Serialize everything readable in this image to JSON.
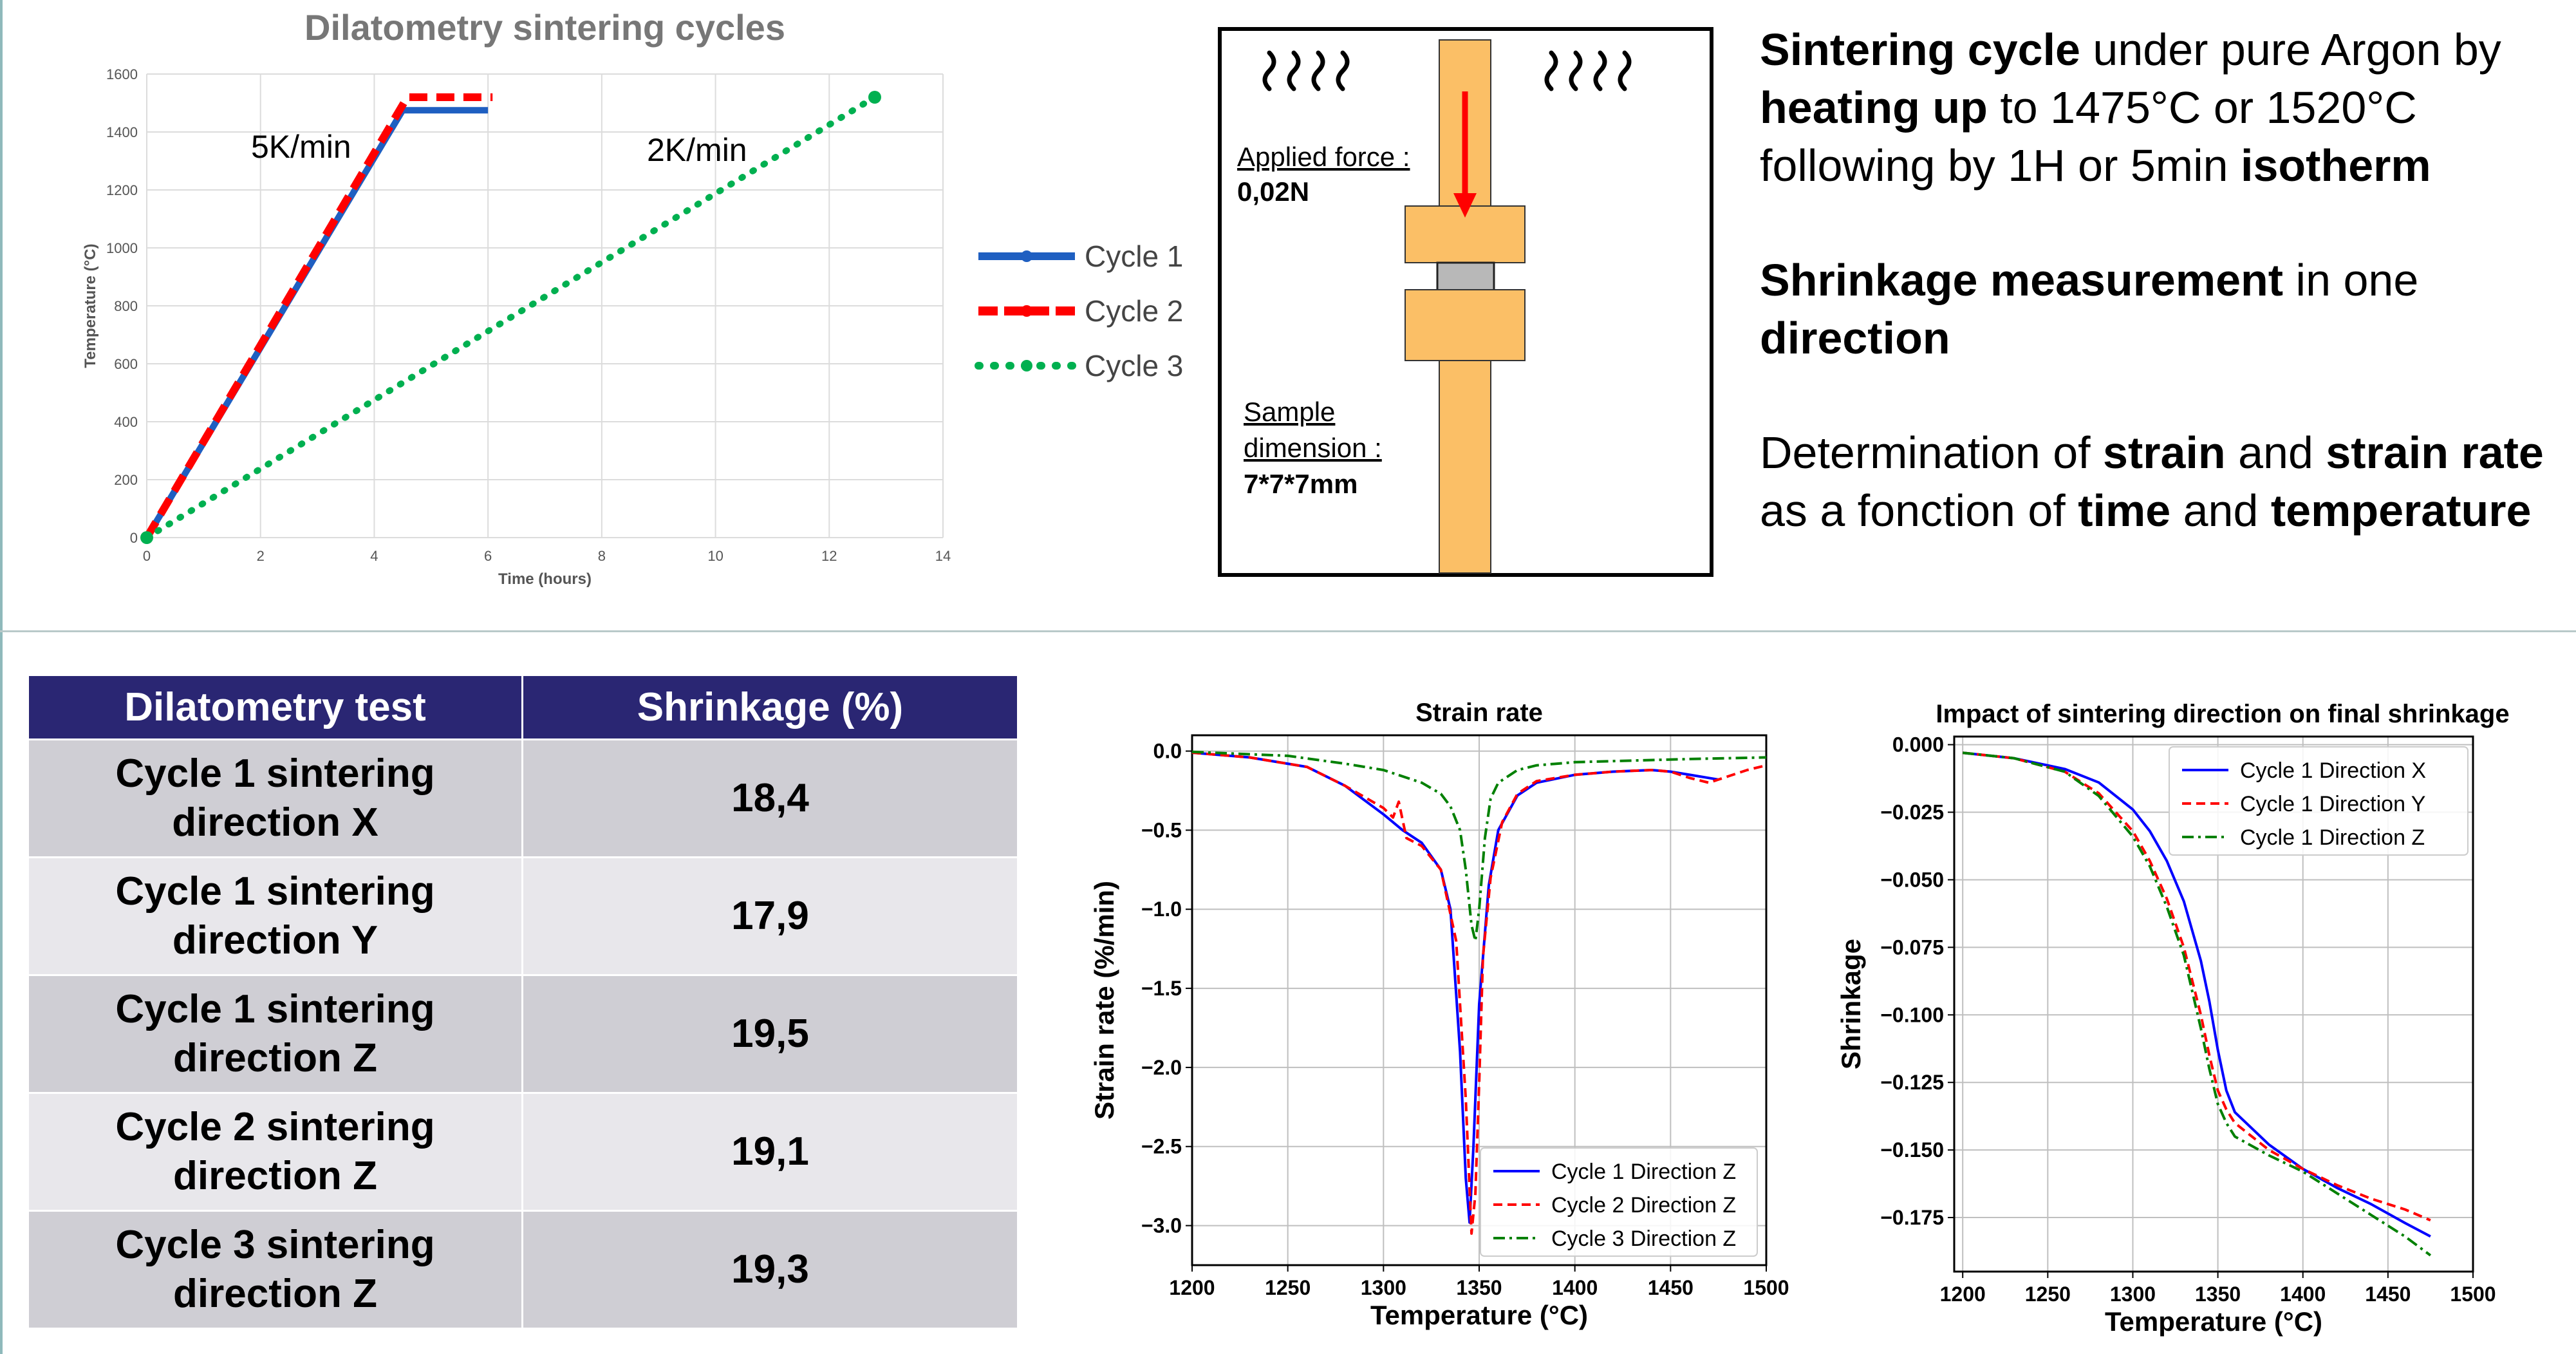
{
  "dilatometry_chart": {
    "title": "Dilatometry sintering cycles",
    "xlabel": "Time (hours)",
    "ylabel": "Temperature (°C)",
    "annotation_5k": "5K/min",
    "annotation_2k": "2K/min",
    "x_ticks": [
      "0",
      "2",
      "4",
      "6",
      "8",
      "10",
      "12",
      "14"
    ],
    "y_ticks": [
      "0",
      "200",
      "400",
      "600",
      "800",
      "1000",
      "1200",
      "1400",
      "1600"
    ],
    "legend": [
      "Cycle 1",
      "Cycle 2",
      "Cycle 3"
    ],
    "colors": {
      "cycle1": "#1f5fc1",
      "cycle2": "#ff0000",
      "cycle3": "#00b050"
    }
  },
  "schematic": {
    "applied_force_label": "Applied force :",
    "applied_force_value": "0,02N",
    "sample_label_1": "Sample",
    "sample_label_2": "dimension :",
    "sample_value": "7*7*7mm",
    "heat_icon_name": "heat-wave-icon",
    "force_arrow_icon_name": "down-arrow-icon"
  },
  "description": {
    "p1_a": "Sintering cycle",
    "p1_b": " under pure Argon by ",
    "p1_c": "heating up",
    "p1_d": " to 1475°C or 1520°C following by 1H or 5min ",
    "p1_e": "isotherm",
    "p2_a": "Shrinkage measurement",
    "p2_b": " in one ",
    "p2_c": "direction",
    "p3_a": "Determination of ",
    "p3_b": "strain",
    "p3_c": " and ",
    "p3_d": "strain rate",
    "p3_e": " as a fonction of ",
    "p3_f": "time",
    "p3_g": " and ",
    "p3_h": "temperature"
  },
  "table": {
    "headers": [
      "Dilatometry test",
      "Shrinkage (%)"
    ],
    "rows": [
      {
        "test_line1": "Cycle 1 sintering",
        "test_line2": "direction X",
        "value": "18,4"
      },
      {
        "test_line1": "Cycle 1 sintering",
        "test_line2": "direction Y",
        "value": "17,9"
      },
      {
        "test_line1": "Cycle 1 sintering",
        "test_line2": "direction Z",
        "value": "19,5"
      },
      {
        "test_line1": "Cycle 2 sintering",
        "test_line2": "direction Z",
        "value": "19,1"
      },
      {
        "test_line1": "Cycle 3 sintering",
        "test_line2": "direction Z",
        "value": "19,3"
      }
    ]
  },
  "chart_data": [
    {
      "type": "line",
      "title": "Dilatometry sintering cycles",
      "xlabel": "Time (hours)",
      "ylabel": "Temperature (°C)",
      "xlim": [
        0,
        14
      ],
      "ylim": [
        0,
        1600
      ],
      "grid": true,
      "legend_position": "right",
      "series": [
        {
          "name": "Cycle 1",
          "x": [
            0,
            4.5,
            6
          ],
          "y": [
            0,
            1475,
            1475
          ]
        },
        {
          "name": "Cycle 2",
          "x": [
            0,
            4.58,
            6.08
          ],
          "y": [
            0,
            1520,
            1520
          ]
        },
        {
          "name": "Cycle 3",
          "x": [
            0,
            12.8
          ],
          "y": [
            0,
            1520
          ]
        }
      ]
    },
    {
      "type": "line",
      "title": "Strain rate",
      "xlabel": "Temperature (°C)",
      "ylabel": "Strain rate (%/min)",
      "xlim": [
        1200,
        1500
      ],
      "ylim": [
        -3.25,
        0.1
      ],
      "x_ticks": [
        1200,
        1250,
        1300,
        1350,
        1400,
        1450,
        1500
      ],
      "y_ticks": [
        0.0,
        -0.5,
        -1.0,
        -1.5,
        -2.0,
        -2.5,
        -3.0
      ],
      "grid": true,
      "legend_position": "bottom-right",
      "series": [
        {
          "name": "Cycle 1 Direction Z",
          "x": [
            1200,
            1230,
            1260,
            1280,
            1300,
            1310,
            1320,
            1330,
            1335,
            1340,
            1343,
            1345,
            1347,
            1350,
            1355,
            1360,
            1370,
            1380,
            1400,
            1420,
            1440,
            1450,
            1460,
            1470,
            1475
          ],
          "y": [
            -0.01,
            -0.04,
            -0.1,
            -0.22,
            -0.4,
            -0.5,
            -0.58,
            -0.75,
            -1.0,
            -1.9,
            -2.7,
            -2.98,
            -2.5,
            -1.6,
            -0.85,
            -0.5,
            -0.28,
            -0.2,
            -0.15,
            -0.13,
            -0.12,
            -0.13,
            -0.15,
            -0.17,
            -0.18
          ]
        },
        {
          "name": "Cycle 2 Direction Z",
          "x": [
            1200,
            1230,
            1260,
            1280,
            1300,
            1305,
            1308,
            1312,
            1320,
            1330,
            1338,
            1343,
            1346,
            1348,
            1350,
            1352,
            1356,
            1362,
            1370,
            1380,
            1400,
            1420,
            1440,
            1450,
            1460,
            1470,
            1480,
            1490,
            1500
          ],
          "y": [
            -0.01,
            -0.04,
            -0.1,
            -0.22,
            -0.36,
            -0.42,
            -0.32,
            -0.55,
            -0.6,
            -0.75,
            -1.2,
            -2.2,
            -3.05,
            -2.8,
            -2.1,
            -1.3,
            -0.8,
            -0.45,
            -0.27,
            -0.19,
            -0.15,
            -0.13,
            -0.12,
            -0.13,
            -0.17,
            -0.2,
            -0.16,
            -0.12,
            -0.09
          ]
        },
        {
          "name": "Cycle 3 Direction Z",
          "x": [
            1200,
            1250,
            1280,
            1300,
            1320,
            1330,
            1335,
            1340,
            1343,
            1346,
            1348,
            1350,
            1353,
            1356,
            1360,
            1370,
            1380,
            1400,
            1430,
            1460,
            1500
          ],
          "y": [
            -0.005,
            -0.03,
            -0.08,
            -0.12,
            -0.2,
            -0.27,
            -0.35,
            -0.5,
            -0.75,
            -1.1,
            -1.2,
            -1.0,
            -0.55,
            -0.3,
            -0.2,
            -0.12,
            -0.09,
            -0.07,
            -0.06,
            -0.05,
            -0.04
          ]
        }
      ]
    },
    {
      "type": "line",
      "title": "Impact of sintering direction on final shrinkage",
      "xlabel": "Temperature (°C)",
      "ylabel": "Shrinkage",
      "xlim": [
        1195,
        1500
      ],
      "ylim": [
        -0.195,
        0.003
      ],
      "x_ticks": [
        1200,
        1250,
        1300,
        1350,
        1400,
        1450,
        1500
      ],
      "y_ticks": [
        0.0,
        -0.025,
        -0.05,
        -0.075,
        -0.1,
        -0.125,
        -0.15,
        -0.175
      ],
      "grid": true,
      "legend_position": "top-right",
      "series": [
        {
          "name": "Cycle 1 Direction X",
          "x": [
            1200,
            1230,
            1260,
            1280,
            1300,
            1310,
            1320,
            1330,
            1340,
            1345,
            1350,
            1355,
            1360,
            1380,
            1400,
            1420,
            1440,
            1460,
            1475
          ],
          "y": [
            -0.003,
            -0.005,
            -0.009,
            -0.014,
            -0.024,
            -0.032,
            -0.043,
            -0.058,
            -0.08,
            -0.095,
            -0.113,
            -0.128,
            -0.136,
            -0.148,
            -0.157,
            -0.164,
            -0.17,
            -0.177,
            -0.182
          ]
        },
        {
          "name": "Cycle 1 Direction Y",
          "x": [
            1200,
            1230,
            1260,
            1280,
            1300,
            1310,
            1320,
            1330,
            1340,
            1345,
            1350,
            1355,
            1360,
            1380,
            1400,
            1420,
            1440,
            1460,
            1475
          ],
          "y": [
            -0.003,
            -0.005,
            -0.01,
            -0.018,
            -0.032,
            -0.043,
            -0.057,
            -0.075,
            -0.1,
            -0.115,
            -0.128,
            -0.135,
            -0.14,
            -0.15,
            -0.157,
            -0.163,
            -0.168,
            -0.172,
            -0.176
          ]
        },
        {
          "name": "Cycle 1 Direction Z",
          "x": [
            1200,
            1230,
            1260,
            1280,
            1300,
            1310,
            1320,
            1330,
            1340,
            1345,
            1350,
            1355,
            1360,
            1380,
            1400,
            1420,
            1440,
            1460,
            1475
          ],
          "y": [
            -0.003,
            -0.005,
            -0.01,
            -0.019,
            -0.034,
            -0.045,
            -0.06,
            -0.078,
            -0.105,
            -0.12,
            -0.133,
            -0.14,
            -0.145,
            -0.152,
            -0.158,
            -0.166,
            -0.174,
            -0.182,
            -0.189
          ]
        }
      ]
    }
  ]
}
